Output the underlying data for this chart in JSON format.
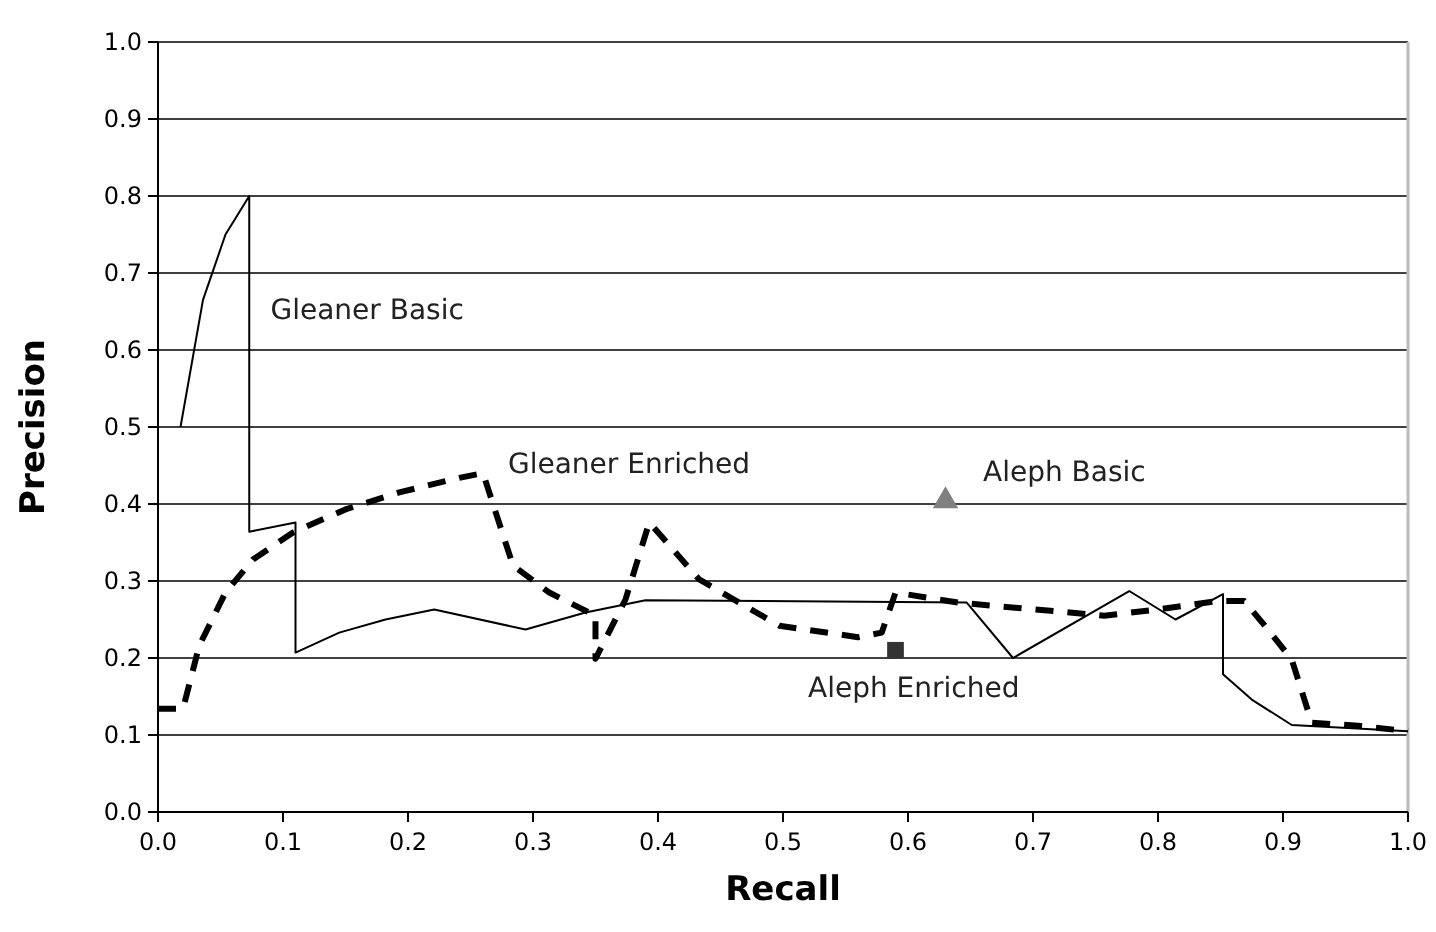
{
  "chart_data": {
    "type": "line",
    "xlabel": "Recall",
    "ylabel": "Precision",
    "xlim": [
      0,
      1
    ],
    "ylim": [
      0,
      1
    ],
    "xticks": [
      {
        "value": 0,
        "label": "0.0"
      },
      {
        "value": 0.1,
        "label": "0.1"
      },
      {
        "value": 0.2,
        "label": "0.2"
      },
      {
        "value": 0.3,
        "label": "0.3"
      },
      {
        "value": 0.4,
        "label": "0.4"
      },
      {
        "value": 0.5,
        "label": "0.5"
      },
      {
        "value": 0.6,
        "label": "0.6"
      },
      {
        "value": 0.7,
        "label": "0.7"
      },
      {
        "value": 0.8,
        "label": "0.8"
      },
      {
        "value": 0.9,
        "label": "0.9"
      },
      {
        "value": 1,
        "label": "1.0"
      }
    ],
    "yticks": [
      {
        "value": 0,
        "label": "0.0"
      },
      {
        "value": 0.1,
        "label": "0.1"
      },
      {
        "value": 0.2,
        "label": "0.2"
      },
      {
        "value": 0.3,
        "label": "0.3"
      },
      {
        "value": 0.4,
        "label": "0.4"
      },
      {
        "value": 0.5,
        "label": "0.5"
      },
      {
        "value": 0.6,
        "label": "0.6"
      },
      {
        "value": 0.7,
        "label": "0.7"
      },
      {
        "value": 0.8,
        "label": "0.8"
      },
      {
        "value": 0.9,
        "label": "0.9"
      },
      {
        "value": 1,
        "label": "1.0"
      }
    ],
    "grid": "y",
    "series": [
      {
        "name": "Gleaner Basic",
        "color": "#000000",
        "line_style": "solid",
        "x": [
          0.018,
          0.036,
          0.054,
          0.073,
          0.073,
          0.11,
          0.11,
          0.145,
          0.182,
          0.221,
          0.294,
          0.342,
          0.39,
          0.647,
          0.684,
          0.777,
          0.814,
          0.852,
          0.852,
          0.875,
          0.907,
          1.0
        ],
        "values": [
          0.5,
          0.665,
          0.75,
          0.8,
          0.364,
          0.376,
          0.207,
          0.233,
          0.25,
          0.263,
          0.237,
          0.259,
          0.275,
          0.272,
          0.2,
          0.287,
          0.25,
          0.283,
          0.179,
          0.146,
          0.113,
          0.105
        ]
      },
      {
        "name": "Gleaner Enriched",
        "color": "#000000",
        "line_style": "dashed",
        "x": [
          0,
          0.02,
          0.033,
          0.054,
          0.076,
          0.108,
          0.15,
          0.193,
          0.241,
          0.26,
          0.284,
          0.313,
          0.35,
          0.35,
          0.374,
          0.393,
          0.433,
          0.497,
          0.56,
          0.579,
          0.59,
          0.64,
          0.757,
          0.8,
          0.848,
          0.869,
          0.888,
          0.907,
          0.923,
          0.96,
          1.0
        ],
        "values": [
          0.134,
          0.134,
          0.216,
          0.285,
          0.328,
          0.363,
          0.393,
          0.415,
          0.434,
          0.44,
          0.32,
          0.285,
          0.255,
          0.199,
          0.276,
          0.376,
          0.302,
          0.242,
          0.227,
          0.233,
          0.285,
          0.272,
          0.255,
          0.263,
          0.274,
          0.274,
          0.237,
          0.198,
          0.116,
          0.112,
          0.105
        ]
      },
      {
        "name": "Aleph Basic",
        "type": "scatter",
        "color": "#808080",
        "marker": "triangle",
        "x": [
          0.63
        ],
        "values": [
          0.404
        ]
      },
      {
        "name": "Aleph Enriched",
        "type": "scatter",
        "color": "#333333",
        "marker": "square",
        "x": [
          0.59
        ],
        "values": [
          0.21
        ]
      }
    ]
  }
}
